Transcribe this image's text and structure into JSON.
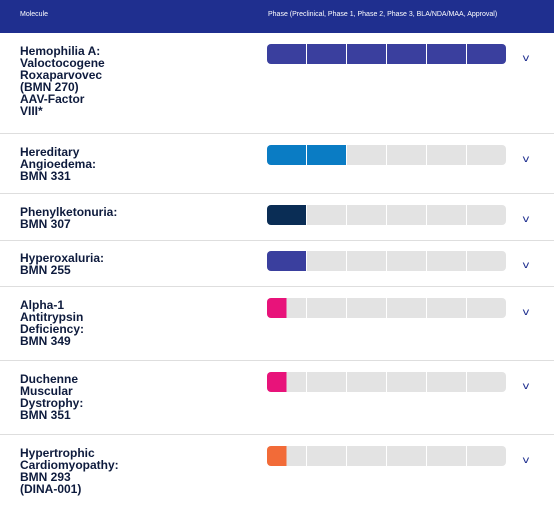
{
  "header": {
    "molecule_label": "Molecule",
    "phase_label": "Phase (Preclinical, Phase 1, Phase 2, Phase 3, BLA/NDA/MAA, Approval)"
  },
  "phases_total": 6,
  "rows": [
    {
      "name": "Hemophilia A:\nValoctocogene\nRoxaparvovec\n(BMN 270)\nAAV-Factor\nVIII*",
      "filled_segments": 6,
      "color": "#3a3f9e",
      "chevron": "v"
    },
    {
      "name": "Hereditary\nAngioedema:\nBMN 331",
      "filled_segments": 2,
      "color": "#0a7cc4",
      "chevron": "v"
    },
    {
      "name": "Phenylketonuria:\nBMN 307",
      "filled_segments": 1,
      "color": "#0a2d55",
      "chevron": "v"
    },
    {
      "name": "Hyperoxaluria:\nBMN 255",
      "filled_segments": 1,
      "color": "#3a3f9e",
      "chevron": "v"
    },
    {
      "name": "Alpha-1\nAntitrypsin\nDeficiency:\nBMN 349",
      "filled_segments": 0.5,
      "color": "#e8137a",
      "chevron": "v"
    },
    {
      "name": "Duchenne\nMuscular\nDystrophy:\nBMN 351",
      "filled_segments": 0.5,
      "color": "#e8137a",
      "chevron": "v"
    },
    {
      "name": "Hypertrophic\nCardiomyopathy:\nBMN 293\n(DINA-001)",
      "filled_segments": 0.5,
      "color": "#f26b38",
      "chevron": "v"
    }
  ]
}
